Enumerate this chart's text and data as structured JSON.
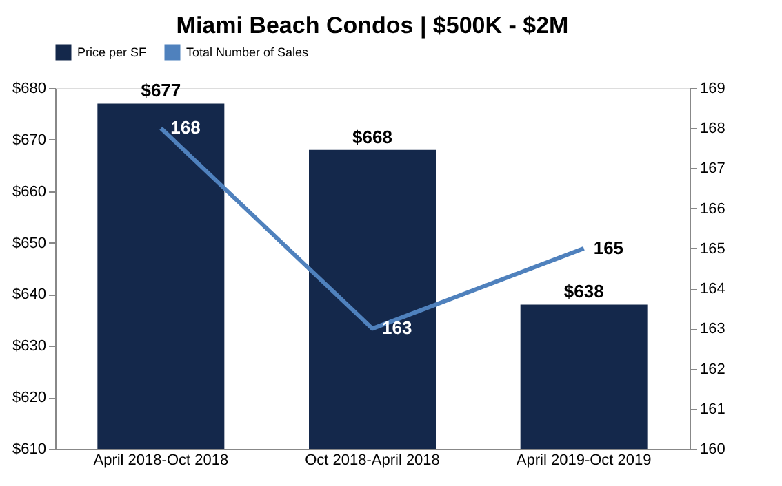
{
  "chart_data": {
    "type": "bar",
    "title": "Miami Beach Condos | $500K - $2M",
    "categories": [
      "April 2018-Oct 2018",
      "Oct 2018-April 2018",
      "April 2019-Oct 2019"
    ],
    "series": [
      {
        "name": "Price per SF",
        "color": "#14284b",
        "values": [
          677,
          668,
          638
        ],
        "value_labels": [
          "$677",
          "$668",
          "$638"
        ]
      },
      {
        "name": "Total Number of Sales",
        "type": "line",
        "axis": "y2",
        "color": "#4f81bd",
        "values": [
          168,
          163,
          165
        ],
        "value_labels": [
          "168",
          "163",
          "165"
        ]
      }
    ],
    "ylim": [
      610,
      680
    ],
    "yticks": [
      {
        "value": 610,
        "label": "$610"
      },
      {
        "value": 620,
        "label": "$620"
      },
      {
        "value": 630,
        "label": "$630"
      },
      {
        "value": 640,
        "label": "$640"
      },
      {
        "value": 650,
        "label": "$650"
      },
      {
        "value": 660,
        "label": "$660"
      },
      {
        "value": 670,
        "label": "$670"
      },
      {
        "value": 680,
        "label": "$680"
      }
    ],
    "y2lim": [
      160,
      169
    ],
    "y2ticks": [
      160,
      161,
      162,
      163,
      164,
      165,
      166,
      167,
      168,
      169
    ],
    "legend": "top",
    "grid": false,
    "marker": "none",
    "line_style": "solid"
  }
}
